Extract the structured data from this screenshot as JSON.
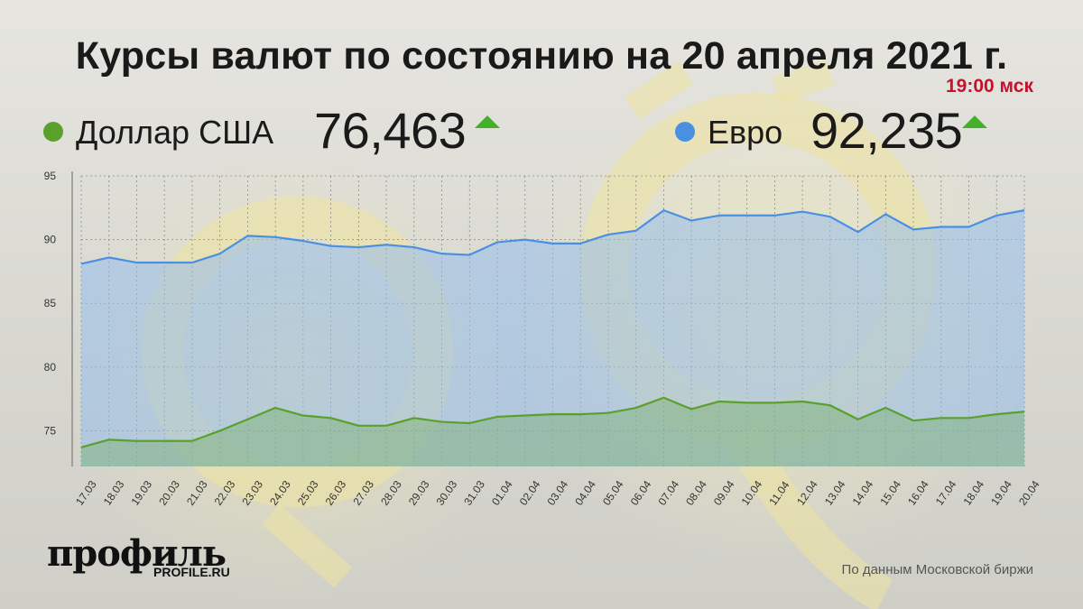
{
  "header": {
    "title": "Курсы валют по состоянию на 20 апреля 2021 г.",
    "time": "19:00 мск"
  },
  "legend": {
    "usd": {
      "name": "Доллар США",
      "value": "76,463",
      "color": "#5aa02c",
      "trend": "up"
    },
    "eur": {
      "name": "Евро",
      "value": "92,235",
      "color": "#4a90e2",
      "trend": "up"
    }
  },
  "footer": {
    "logo": "профиль",
    "logo_sub": "PROFILE.RU",
    "source": "По данным Московской биржи"
  },
  "chart_data": {
    "type": "area",
    "x": [
      "17.03",
      "18.03",
      "19.03",
      "20.03",
      "21.03",
      "22.03",
      "23.03",
      "24.03",
      "25.03",
      "26.03",
      "27.03",
      "28.03",
      "29.03",
      "30.03",
      "31.03",
      "01.04",
      "02.04",
      "03.04",
      "04.04",
      "05.04",
      "06.04",
      "07.04",
      "08.04",
      "09.04",
      "10.04",
      "11.04",
      "12.04",
      "13.04",
      "14.04",
      "15.04",
      "16.04",
      "17.04",
      "18.04",
      "19.04",
      "20.04"
    ],
    "series": [
      {
        "name": "Евро",
        "color": "#4a90e2",
        "values": [
          88.1,
          88.6,
          88.2,
          88.2,
          88.2,
          88.9,
          90.3,
          90.2,
          89.9,
          89.5,
          89.4,
          89.6,
          89.4,
          88.9,
          88.8,
          89.8,
          90.0,
          89.7,
          89.7,
          90.4,
          90.7,
          92.3,
          91.5,
          91.9,
          91.9,
          91.9,
          92.2,
          91.8,
          90.6,
          92.0,
          90.8,
          91.0,
          91.0,
          91.9,
          92.3
        ]
      },
      {
        "name": "Доллар США",
        "color": "#5aa02c",
        "values": [
          73.7,
          74.3,
          74.2,
          74.2,
          74.2,
          75.0,
          75.9,
          76.8,
          76.2,
          76.0,
          75.4,
          75.4,
          76.0,
          75.7,
          75.6,
          76.1,
          76.2,
          76.3,
          76.3,
          76.4,
          76.8,
          77.6,
          76.7,
          77.3,
          77.2,
          77.2,
          77.3,
          77.0,
          75.9,
          76.8,
          75.8,
          76.0,
          76.0,
          76.3,
          76.5
        ]
      }
    ],
    "yticks": [
      75,
      80,
      85,
      90,
      95
    ],
    "ylim": [
      72.2,
      95
    ],
    "grid": true
  }
}
